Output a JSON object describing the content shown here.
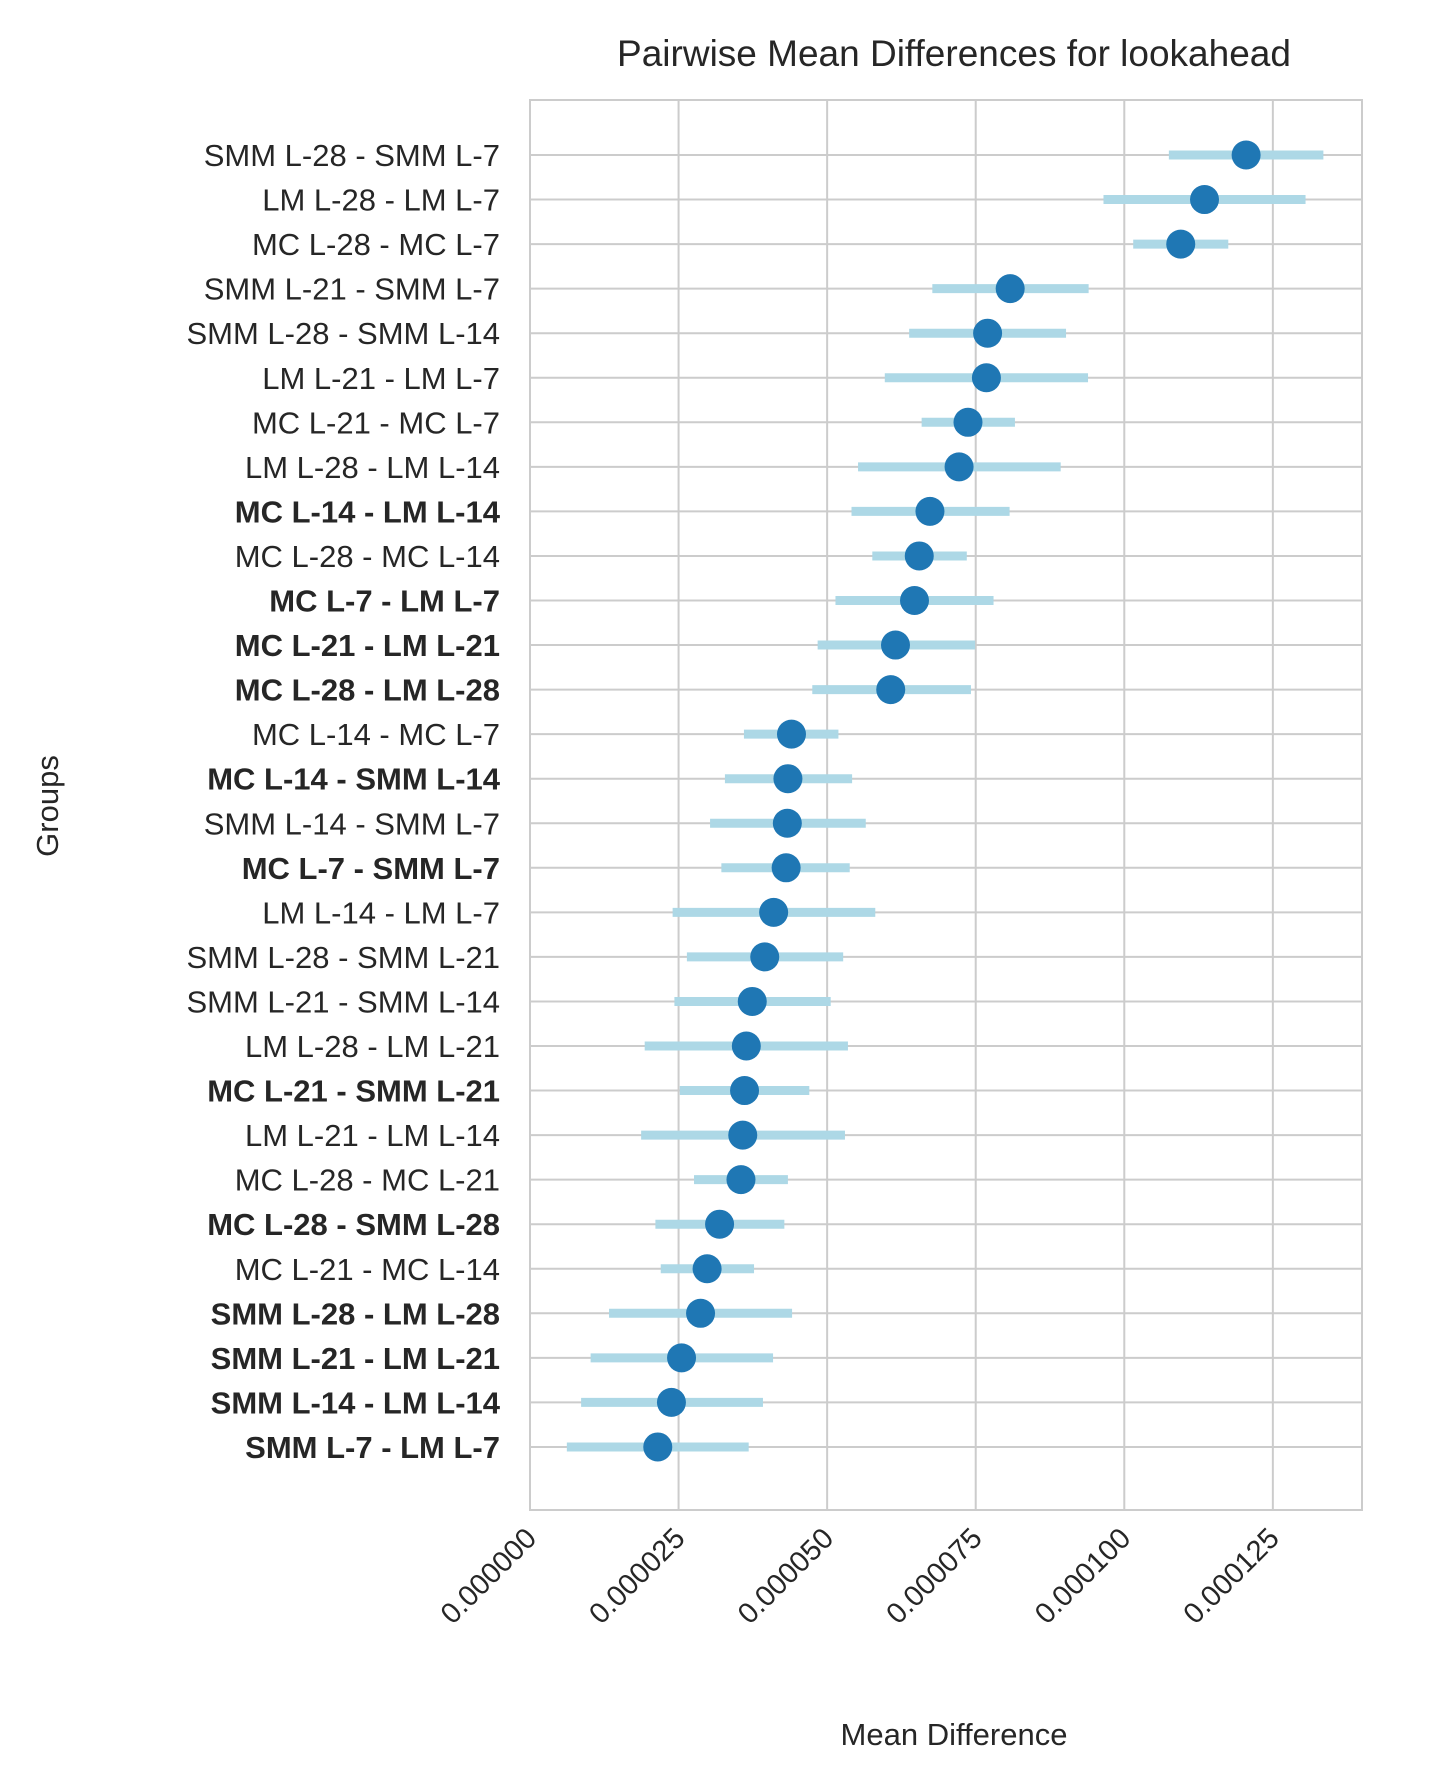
{
  "chart_data": {
    "type": "errorbar",
    "title": "Pairwise Mean Differences for lookahead",
    "xlabel": "Mean Difference",
    "ylabel": "Groups",
    "xlim": [
      0.0,
      0.00014
    ],
    "x_ticks": [
      "0.000000",
      "0.000025",
      "0.000050",
      "0.000075",
      "0.000100",
      "0.000125"
    ],
    "x_tick_values": [
      0.0,
      2.5e-05,
      5e-05,
      7.5e-05,
      0.0001,
      0.000125
    ],
    "grid": true,
    "reference_line": 0.0,
    "marker_color": "#1f77b4",
    "ci_color": "#add8e6",
    "rows": [
      {
        "label": "SMM L-28 - SMM L-7",
        "mean": 0.0001205,
        "lo": 0.0001075,
        "hi": 0.0001335,
        "bold": false
      },
      {
        "label": "LM L-28 - LM L-7",
        "mean": 0.0001135,
        "lo": 9.65e-05,
        "hi": 0.0001305,
        "bold": false
      },
      {
        "label": "MC L-28 - MC L-7",
        "mean": 0.0001095,
        "lo": 0.0001015,
        "hi": 0.0001175,
        "bold": false
      },
      {
        "label": "SMM L-21 - SMM L-7",
        "mean": 8.08e-05,
        "lo": 6.77e-05,
        "hi": 9.4e-05,
        "bold": false
      },
      {
        "label": "SMM L-28 - SMM L-14",
        "mean": 7.7e-05,
        "lo": 6.38e-05,
        "hi": 9.02e-05,
        "bold": false
      },
      {
        "label": "LM L-21 - LM L-7",
        "mean": 7.68e-05,
        "lo": 5.97e-05,
        "hi": 9.39e-05,
        "bold": false
      },
      {
        "label": "MC L-21 - MC L-7",
        "mean": 7.37e-05,
        "lo": 6.59e-05,
        "hi": 8.16e-05,
        "bold": false
      },
      {
        "label": "LM L-28 - LM L-14",
        "mean": 7.22e-05,
        "lo": 5.52e-05,
        "hi": 8.93e-05,
        "bold": false
      },
      {
        "label": "MC L-14 - LM L-14",
        "mean": 6.73e-05,
        "lo": 5.41e-05,
        "hi": 8.07e-05,
        "bold": true
      },
      {
        "label": "MC L-28 - MC L-14",
        "mean": 6.55e-05,
        "lo": 5.76e-05,
        "hi": 7.35e-05,
        "bold": false
      },
      {
        "label": "MC L-7 - LM L-7",
        "mean": 6.47e-05,
        "lo": 5.14e-05,
        "hi": 7.8e-05,
        "bold": true
      },
      {
        "label": "MC L-21 - LM L-21",
        "mean": 6.15e-05,
        "lo": 4.84e-05,
        "hi": 7.49e-05,
        "bold": true
      },
      {
        "label": "MC L-28 - LM L-28",
        "mean": 6.07e-05,
        "lo": 4.75e-05,
        "hi": 7.42e-05,
        "bold": true
      },
      {
        "label": "MC L-14 - MC L-7",
        "mean": 4.4e-05,
        "lo": 3.6e-05,
        "hi": 5.19e-05,
        "bold": false
      },
      {
        "label": "MC L-14 - SMM L-14",
        "mean": 4.34e-05,
        "lo": 3.28e-05,
        "hi": 5.42e-05,
        "bold": true
      },
      {
        "label": "SMM L-14 - SMM L-7",
        "mean": 4.33e-05,
        "lo": 3.03e-05,
        "hi": 5.65e-05,
        "bold": false
      },
      {
        "label": "MC L-7 - SMM L-7",
        "mean": 4.31e-05,
        "lo": 3.22e-05,
        "hi": 5.38e-05,
        "bold": true
      },
      {
        "label": "LM L-14 - LM L-7",
        "mean": 4.1e-05,
        "lo": 2.4e-05,
        "hi": 5.81e-05,
        "bold": false
      },
      {
        "label": "SMM L-28 - SMM L-21",
        "mean": 3.95e-05,
        "lo": 2.64e-05,
        "hi": 5.27e-05,
        "bold": false
      },
      {
        "label": "SMM L-21 - SMM L-14",
        "mean": 3.74e-05,
        "lo": 2.43e-05,
        "hi": 5.06e-05,
        "bold": false
      },
      {
        "label": "LM L-28 - LM L-21",
        "mean": 3.64e-05,
        "lo": 1.93e-05,
        "hi": 5.35e-05,
        "bold": false
      },
      {
        "label": "MC L-21 - SMM L-21",
        "mean": 3.61e-05,
        "lo": 2.52e-05,
        "hi": 4.7e-05,
        "bold": true
      },
      {
        "label": "LM L-21 - LM L-14",
        "mean": 3.58e-05,
        "lo": 1.87e-05,
        "hi": 5.3e-05,
        "bold": false
      },
      {
        "label": "MC L-28 - MC L-21",
        "mean": 3.55e-05,
        "lo": 2.76e-05,
        "hi": 4.34e-05,
        "bold": false
      },
      {
        "label": "MC L-28 - SMM L-28",
        "mean": 3.19e-05,
        "lo": 2.11e-05,
        "hi": 4.28e-05,
        "bold": true
      },
      {
        "label": "MC L-21 - MC L-14",
        "mean": 2.98e-05,
        "lo": 2.2e-05,
        "hi": 3.77e-05,
        "bold": false
      },
      {
        "label": "SMM L-28 - LM L-28",
        "mean": 2.87e-05,
        "lo": 1.33e-05,
        "hi": 4.41e-05,
        "bold": true
      },
      {
        "label": "SMM L-21 - LM L-21",
        "mean": 2.55e-05,
        "lo": 1.02e-05,
        "hi": 4.09e-05,
        "bold": true
      },
      {
        "label": "SMM L-14 - LM L-14",
        "mean": 2.38e-05,
        "lo": 8.6e-06,
        "hi": 3.92e-05,
        "bold": true
      },
      {
        "label": "SMM L-7 - LM L-7",
        "mean": 2.15e-05,
        "lo": 6.2e-06,
        "hi": 3.68e-05,
        "bold": true
      }
    ]
  }
}
